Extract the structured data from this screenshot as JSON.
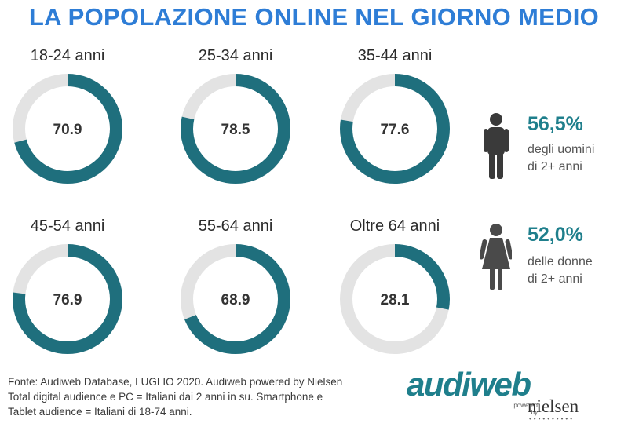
{
  "title": "LA POPOLAZIONE ONLINE NEL GIORNO MEDIO",
  "colors": {
    "accent": "#1f6f7d",
    "track": "#e3e3e3",
    "title": "#2e7dd6"
  },
  "chart_data": {
    "type": "pie",
    "subtype": "donut",
    "max": 100,
    "items": [
      {
        "label": "18-24 anni",
        "value": 70.9
      },
      {
        "label": "25-34 anni",
        "value": 78.5
      },
      {
        "label": "35-44 anni",
        "value": 77.6
      },
      {
        "label": "45-54 anni",
        "value": 76.9
      },
      {
        "label": "55-64 anni",
        "value": 68.9
      },
      {
        "label": "Oltre 64 anni",
        "value": 28.1
      }
    ]
  },
  "gender": {
    "men": {
      "pct": "56,5%",
      "line1": "degli uomini",
      "line2": "di 2+ anni",
      "icon": "man-icon"
    },
    "women": {
      "pct": "52,0%",
      "line1": "delle donne",
      "line2": "di 2+ anni",
      "icon": "woman-icon"
    }
  },
  "footnote": [
    "Fonte: Audiweb Database, LUGLIO 2020. Audiweb powered by Nielsen",
    "Total digital audience e PC = Italiani dai 2 anni in su. Smartphone e",
    "Tablet audience = Italiani di 18-74 anni."
  ],
  "logo": {
    "main": "audiweb",
    "powered_line1": "powered",
    "powered_line2": "by",
    "partner": "nielsen"
  }
}
